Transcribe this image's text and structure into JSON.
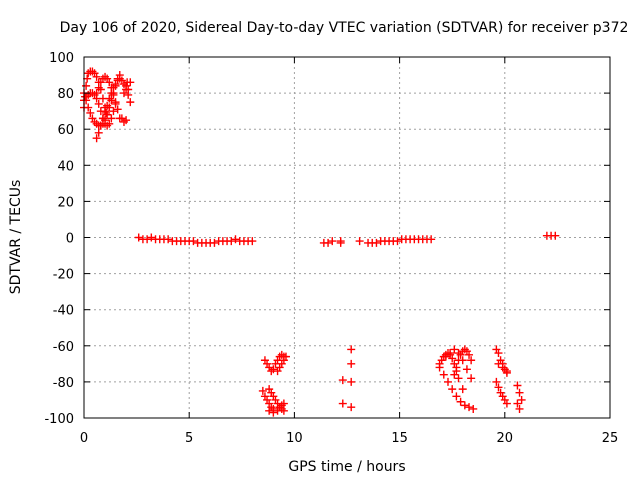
{
  "chart_data": {
    "type": "scatter",
    "title": "Day 106 of 2020, Sidereal Day-to-day VTEC variation (SDTVAR) for receiver p372",
    "xlabel": "GPS time / hours",
    "ylabel": "SDTVAR / TECUs",
    "xlim": [
      0,
      25
    ],
    "ylim": [
      -100,
      100
    ],
    "xticks": [
      0,
      5,
      10,
      15,
      20,
      25
    ],
    "xtick_labels": [
      "0",
      "5",
      "10",
      "15",
      "20",
      "25"
    ],
    "yticks": [
      -100,
      -80,
      -60,
      -40,
      -20,
      0,
      20,
      40,
      60,
      80,
      100
    ],
    "ytick_labels": [
      "-100",
      "-80",
      "-60",
      "-40",
      "-20",
      "0",
      "20",
      "40",
      "60",
      "80",
      "100"
    ],
    "grid": true,
    "marker": "+",
    "color": "#ff0000",
    "series": [
      {
        "name": "SDTVAR",
        "x": [
          0.0,
          0.05,
          0.1,
          0.15,
          0.2,
          0.3,
          0.4,
          0.5,
          0.6,
          0.7,
          0.8,
          0.9,
          1.0,
          1.05,
          0.0,
          0.1,
          0.2,
          0.3,
          0.4,
          0.5,
          0.6,
          0.7,
          0.8,
          0.9,
          1.0,
          1.1,
          1.2,
          1.3,
          1.4,
          1.5,
          0.6,
          0.7,
          0.8,
          0.9,
          1.0,
          1.1,
          1.2,
          1.3,
          1.4,
          1.5,
          1.6,
          1.7,
          0.0,
          0.1,
          0.2,
          0.3,
          0.4,
          0.5,
          0.6,
          0.7,
          0.8,
          0.9,
          1.0,
          1.1,
          1.2,
          1.3,
          1.4,
          1.5,
          1.6,
          1.7,
          0.6,
          0.7,
          0.8,
          0.9,
          1.0,
          1.1,
          1.2,
          1.3,
          1.4,
          1.5,
          1.6,
          1.7,
          1.8,
          1.9,
          2.0,
          2.1,
          2.2,
          1.8,
          1.9,
          2.0,
          2.1,
          2.2,
          1.9,
          2.0,
          2.05,
          2.6,
          2.8,
          3.0,
          3.2,
          3.4,
          3.6,
          3.8,
          4.0,
          4.2,
          4.4,
          4.6,
          4.8,
          5.0,
          5.2,
          5.4,
          5.6,
          5.8,
          6.0,
          6.2,
          6.4,
          6.6,
          6.8,
          7.0,
          7.2,
          7.4,
          7.6,
          7.8,
          8.0,
          8.6,
          8.7,
          8.8,
          8.9,
          9.0,
          9.1,
          9.2,
          9.3,
          9.4,
          9.5,
          8.5,
          8.6,
          8.7,
          8.8,
          8.9,
          9.0,
          8.8,
          8.9,
          9.0,
          9.1,
          9.2,
          9.3,
          9.4,
          9.5,
          8.8,
          9.0,
          9.2,
          9.3,
          9.4,
          9.5,
          9.2,
          9.3,
          9.4,
          9.5,
          9.6,
          11.4,
          11.6,
          11.8,
          12.2,
          12.2,
          12.7,
          12.7,
          12.7,
          12.3,
          12.3,
          12.7,
          13.1,
          13.5,
          13.7,
          13.9,
          14.1,
          14.3,
          14.5,
          14.7,
          14.9,
          15.1,
          15.3,
          15.5,
          15.7,
          15.9,
          16.1,
          16.3,
          16.5,
          16.9,
          17.1,
          17.3,
          17.5,
          17.7,
          17.9,
          18.1,
          18.3,
          18.5,
          16.9,
          17.0,
          17.1,
          17.2,
          17.3,
          17.4,
          17.5,
          17.6,
          17.7,
          17.8,
          18.0,
          17.2,
          17.4,
          17.6,
          17.8,
          18.0,
          18.2,
          18.4,
          17.6,
          17.7,
          17.8,
          17.9,
          18.0,
          18.1,
          18.2,
          18.3,
          18.4,
          19.6,
          19.7,
          19.8,
          19.9,
          20.0,
          20.1,
          19.6,
          19.7,
          19.8,
          19.9,
          20.0,
          20.1,
          19.7,
          19.9,
          20.1,
          20.6,
          20.7,
          20.8,
          20.6,
          20.7,
          22.0,
          22.2,
          22.4
        ],
        "y": [
          72,
          78,
          84,
          88,
          91,
          92,
          92,
          91,
          89,
          86,
          82,
          77,
          72,
          69,
          76,
          78,
          79,
          80,
          80,
          79,
          77,
          74,
          70,
          66,
          63,
          62,
          63,
          66,
          70,
          74,
          80,
          83,
          86,
          88,
          89,
          88,
          86,
          83,
          79,
          75,
          71,
          66,
          80,
          76,
          72,
          69,
          66,
          64,
          63,
          62,
          62,
          63,
          65,
          68,
          72,
          76,
          80,
          84,
          88,
          90,
          55,
          58,
          62,
          66,
          70,
          73,
          77,
          80,
          83,
          85,
          87,
          88,
          87,
          85,
          82,
          79,
          75,
          66,
          64,
          65,
          82,
          86,
          80,
          84,
          86,
          0,
          -1,
          -1,
          0,
          -1,
          -1,
          -1,
          -1,
          -2,
          -2,
          -2,
          -2,
          -2,
          -2,
          -3,
          -3,
          -3,
          -3,
          -3,
          -2,
          -2,
          -2,
          -2,
          -1,
          -2,
          -2,
          -2,
          -2,
          -68,
          -70,
          -72,
          -74,
          -73,
          -70,
          -68,
          -66,
          -65,
          -66,
          -85,
          -88,
          -90,
          -92,
          -94,
          -95,
          -84,
          -86,
          -88,
          -90,
          -92,
          -94,
          -95,
          -96,
          -96,
          -97,
          -96,
          -94,
          -93,
          -92,
          -74,
          -72,
          -70,
          -68,
          -66,
          -3,
          -3,
          -2,
          -3,
          -2,
          -62,
          -70,
          -80,
          -79,
          -92,
          -94,
          -2,
          -3,
          -3,
          -3,
          -2,
          -2,
          -2,
          -2,
          -2,
          -1,
          -1,
          -1,
          -1,
          -1,
          -1,
          -1,
          -1,
          -72,
          -76,
          -80,
          -84,
          -88,
          -91,
          -93,
          -94,
          -95,
          -70,
          -68,
          -66,
          -65,
          -64,
          -65,
          -67,
          -70,
          -74,
          -78,
          -84,
          -66,
          -64,
          -62,
          -64,
          -68,
          -73,
          -78,
          -76,
          -72,
          -68,
          -65,
          -63,
          -62,
          -63,
          -65,
          -68,
          -62,
          -64,
          -68,
          -70,
          -73,
          -75,
          -80,
          -83,
          -86,
          -88,
          -90,
          -92,
          -70,
          -72,
          -74,
          -82,
          -86,
          -90,
          -92,
          -95,
          1,
          1,
          1
        ]
      }
    ]
  }
}
